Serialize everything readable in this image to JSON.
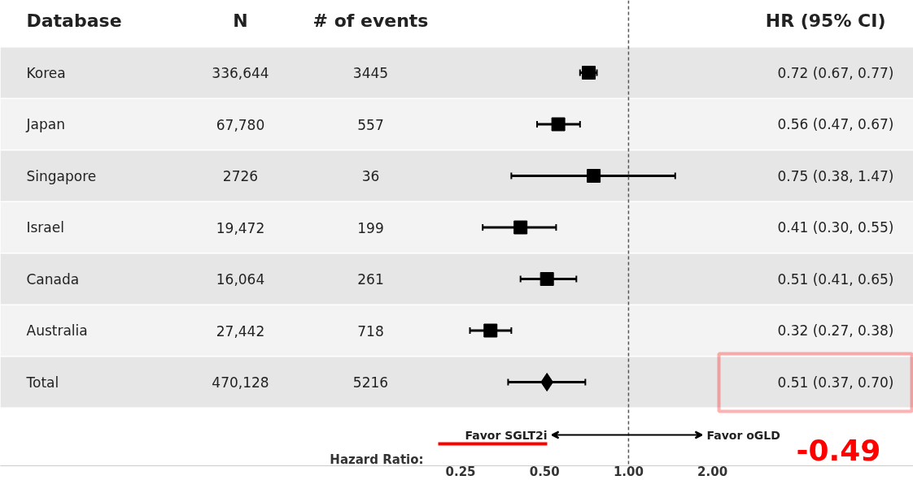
{
  "chart_data": {
    "type": "scatter",
    "orientation": "horizontal",
    "log": "x",
    "xlabel": "Hazard Ratio:",
    "categories": [
      "Korea",
      "Japan",
      "Singapore",
      "Israel",
      "Canada",
      "Australia",
      "Total"
    ],
    "xlim": [
      0.0056,
      10.5
    ],
    "xticks": [
      {
        "value": 0.25,
        "label": "0.25"
      },
      {
        "value": 0.5,
        "label": "0.50"
      },
      {
        "value": 1,
        "label": "1.00"
      },
      {
        "value": 2,
        "label": "2.00"
      }
    ],
    "series": [
      {
        "color": "#000000",
        "marker": "square",
        "values": [
          0.72,
          0.56,
          0.75,
          0.41,
          0.51,
          0.32,
          null
        ],
        "errors": [
          [
            0.67,
            0.77
          ],
          [
            0.47,
            0.67
          ],
          [
            0.38,
            1.47
          ],
          [
            0.3,
            0.55
          ],
          [
            0.41,
            0.65
          ],
          [
            0.27,
            0.38
          ],
          null
        ]
      },
      {
        "color": "#000000",
        "marker": "diamond",
        "values": [
          null,
          null,
          null,
          null,
          null,
          null,
          0.51
        ],
        "errors": [
          null,
          null,
          null,
          null,
          null,
          null,
          [
            0.37,
            0.7
          ]
        ]
      }
    ],
    "ref_lines": [
      {
        "axis": "x",
        "value": 1,
        "color": "#555555",
        "line_style": "dashed"
      }
    ],
    "annotations": [
      "Database",
      "N",
      "# of events",
      "HR (95% CI)",
      "336,644",
      "67,780",
      "2726",
      "19,472",
      "16,064",
      "27,442",
      "470,128",
      "3445",
      "557",
      "36",
      "199",
      "261",
      "718",
      "5216",
      "0.72 (0.67, 0.77)",
      "0.56 (0.47, 0.67)",
      "0.75 (0.38, 1.47)",
      "0.41 (0.30, 0.55)",
      "0.51 (0.41, 0.65)",
      "0.32 (0.27, 0.38)",
      "0.51 (0.37, 0.70)",
      "Favor SGLT2i",
      "Favor oGLD",
      "-0.49"
    ]
  }
}
